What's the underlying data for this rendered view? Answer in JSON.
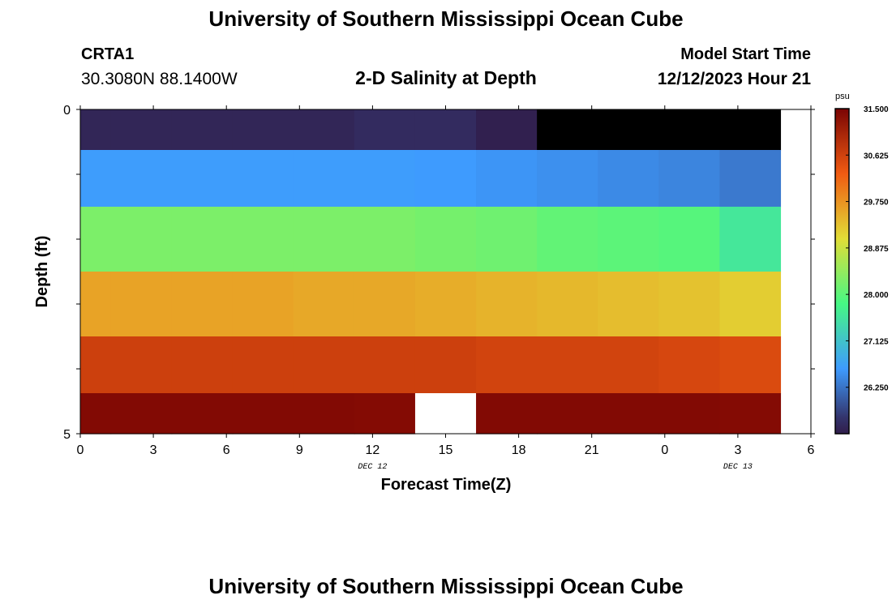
{
  "header": {
    "title": "University of Southern Mississippi Ocean Cube",
    "station": "CRTA1",
    "coords": "30.3080N  88.1400W",
    "chart_title": "2-D Salinity at Depth",
    "model_start_label": "Model Start Time",
    "model_start_value": "12/12/2023 Hour 21"
  },
  "footer": {
    "title": "University of Southern Mississippi Ocean Cube"
  },
  "chart_data": {
    "type": "heatmap",
    "title": "2-D Salinity at Depth",
    "xlabel": "Forecast Time(Z)",
    "ylabel": "Depth (ft)",
    "x_tick_labels": [
      "0",
      "3",
      "6",
      "9",
      "12",
      "15",
      "18",
      "21",
      "0",
      "3",
      "6"
    ],
    "x_date_labels": [
      {
        "label": "DEC 12",
        "tick_index": 4
      },
      {
        "label": "DEC 13",
        "tick_index": 9
      }
    ],
    "y_tick_labels": [
      "0",
      "5"
    ],
    "ylim": [
      0,
      5
    ],
    "time_steps": [
      0,
      2.5,
      5,
      7.5,
      10,
      12.5,
      15,
      17.5,
      20,
      22.5,
      25,
      27.5
    ],
    "depth_levels": [
      0.25,
      1.0,
      2.0,
      3.0,
      4.0,
      4.75
    ],
    "values": [
      [
        25.55,
        25.55,
        25.55,
        25.55,
        25.55,
        25.6,
        25.6,
        25.5,
        25.35,
        25.25,
        25.15,
        24.8
      ],
      [
        26.62,
        26.62,
        26.62,
        26.62,
        26.62,
        26.62,
        26.6,
        26.55,
        26.5,
        26.45,
        26.4,
        26.3
      ],
      [
        28.25,
        28.25,
        28.25,
        28.25,
        28.25,
        28.25,
        28.2,
        28.15,
        28.05,
        28.0,
        27.95,
        27.6
      ],
      [
        29.6,
        29.6,
        29.6,
        29.6,
        29.55,
        29.55,
        29.5,
        29.45,
        29.4,
        29.35,
        29.3,
        29.2
      ],
      [
        30.65,
        30.65,
        30.65,
        30.65,
        30.65,
        30.65,
        30.65,
        30.6,
        30.6,
        30.6,
        30.55,
        30.5
      ],
      [
        31.42,
        31.42,
        31.42,
        31.42,
        31.42,
        31.4,
        null,
        31.42,
        31.42,
        31.42,
        31.42,
        31.4
      ]
    ],
    "colorbar": {
      "unit": "psu",
      "ticks": [
        "31.500",
        "30.625",
        "29.750",
        "28.875",
        "28.000",
        "27.125",
        "26.250"
      ],
      "range": [
        25.375,
        31.5
      ]
    },
    "colors": [
      "#30123b",
      "#3e9bfe",
      "#46f884",
      "#e1dd37",
      "#f05b12",
      "#7a0403"
    ],
    "legend": "right"
  }
}
